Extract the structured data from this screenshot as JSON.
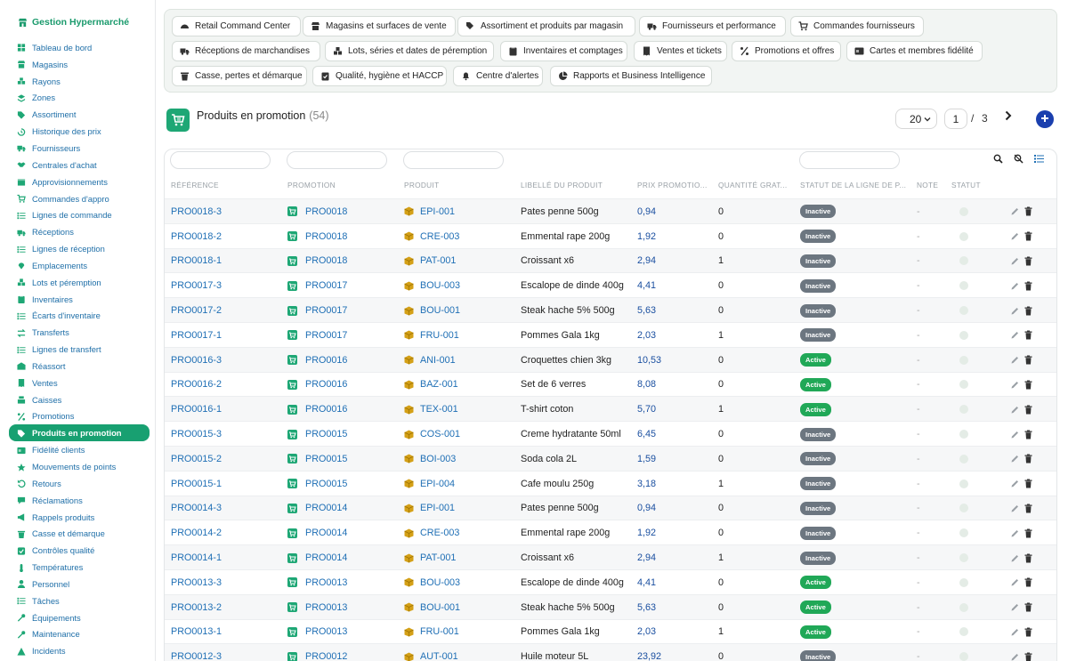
{
  "app": {
    "title": "Gestion Hypermarché"
  },
  "sidebar": {
    "items": [
      {
        "label": "Tableau de bord",
        "icon": "dashboard-icon"
      },
      {
        "label": "Magasins",
        "icon": "store-icon"
      },
      {
        "label": "Rayons",
        "icon": "boxes-icon"
      },
      {
        "label": "Zones",
        "icon": "layers-icon"
      },
      {
        "label": "Assortiment",
        "icon": "tag-icon"
      },
      {
        "label": "Historique des prix",
        "icon": "history-icon"
      },
      {
        "label": "Fournisseurs",
        "icon": "truck-icon"
      },
      {
        "label": "Centrales d'achat",
        "icon": "handshake-icon"
      },
      {
        "label": "Approvisionnements",
        "icon": "box-icon"
      },
      {
        "label": "Commandes d'appro",
        "icon": "cart-icon"
      },
      {
        "label": "Lignes de commande",
        "icon": "list-icon"
      },
      {
        "label": "Réceptions",
        "icon": "truck-loading-icon"
      },
      {
        "label": "Lignes de réception",
        "icon": "list-icon"
      },
      {
        "label": "Emplacements",
        "icon": "location-pin-icon"
      },
      {
        "label": "Lots et péremption",
        "icon": "cubes-icon"
      },
      {
        "label": "Inventaires",
        "icon": "clipboard-icon"
      },
      {
        "label": "Écarts d'inventaire",
        "icon": "list-icon"
      },
      {
        "label": "Transferts",
        "icon": "exchange-icon"
      },
      {
        "label": "Lignes de transfert",
        "icon": "list-icon"
      },
      {
        "label": "Réassort",
        "icon": "warehouse-icon"
      },
      {
        "label": "Ventes",
        "icon": "receipt-icon"
      },
      {
        "label": "Caisses",
        "icon": "cash-register-icon"
      },
      {
        "label": "Promotions",
        "icon": "percent-icon"
      },
      {
        "label": "Produits en promotion",
        "icon": "tag-icon",
        "active": true
      },
      {
        "label": "Fidélité clients",
        "icon": "id-card-icon"
      },
      {
        "label": "Mouvements de points",
        "icon": "star-icon"
      },
      {
        "label": "Retours",
        "icon": "undo-icon"
      },
      {
        "label": "Réclamations",
        "icon": "comment-icon"
      },
      {
        "label": "Rappels produits",
        "icon": "bullhorn-icon"
      },
      {
        "label": "Casse et démarque",
        "icon": "trash-icon"
      },
      {
        "label": "Contrôles qualité",
        "icon": "check-icon"
      },
      {
        "label": "Températures",
        "icon": "thermometer-icon"
      },
      {
        "label": "Personnel",
        "icon": "user-icon"
      },
      {
        "label": "Tâches",
        "icon": "tasks-icon"
      },
      {
        "label": "Équipements",
        "icon": "tools-icon"
      },
      {
        "label": "Maintenance",
        "icon": "wrench-icon"
      },
      {
        "label": "Incidents",
        "icon": "warning-icon"
      }
    ]
  },
  "modules": [
    {
      "label": "Retail Command Center",
      "icon": "gauge-icon"
    },
    {
      "label": "Magasins et surfaces de vente",
      "icon": "store-icon"
    },
    {
      "label": "Assortiment et produits par magasin",
      "icon": "tags-icon"
    },
    {
      "label": "Fournisseurs et performance",
      "icon": "truck-icon"
    },
    {
      "label": "Commandes fournisseurs",
      "icon": "cart-icon"
    },
    {
      "label": "Réceptions de marchandises",
      "icon": "truck-loading-icon"
    },
    {
      "label": "Lots, séries et dates de péremption",
      "icon": "cubes-icon"
    },
    {
      "label": "Inventaires et comptages",
      "icon": "clipboard-icon"
    },
    {
      "label": "Ventes et tickets",
      "icon": "receipt-icon"
    },
    {
      "label": "Promotions et offres",
      "icon": "percent-icon"
    },
    {
      "label": "Cartes et membres fidélité",
      "icon": "id-card-icon"
    },
    {
      "label": "Casse, pertes et démarque",
      "icon": "trash-icon"
    },
    {
      "label": "Qualité, hygiène et HACCP",
      "icon": "clipboard-check-icon"
    },
    {
      "label": "Centre d'alertes",
      "icon": "bell-icon"
    },
    {
      "label": "Rapports et Business Intelligence",
      "icon": "chart-pie-icon"
    }
  ],
  "page": {
    "title": "Produits en promotion",
    "count": "(54)"
  },
  "pagination": {
    "page_size": "20",
    "current_page": "1",
    "separator": "/",
    "total_pages": "3"
  },
  "table": {
    "headers": {
      "reference": "Référence",
      "promotion": "Promotion",
      "produit": "Produit",
      "libelle": "Libellé du produit",
      "prix": "Prix promotio...",
      "quantite": "Quantité grat...",
      "statut_ligne": "Statut de la ligne de p...",
      "note": "Note",
      "statut": "Statut"
    },
    "rows": [
      {
        "ref": "PRO0018-3",
        "promo": "PRO0018",
        "prod": "EPI-001",
        "label": "Pates penne 500g",
        "price": "0,94",
        "qty": "0",
        "status": "Inactive",
        "note": "-"
      },
      {
        "ref": "PRO0018-2",
        "promo": "PRO0018",
        "prod": "CRE-003",
        "label": "Emmental rape 200g",
        "price": "1,92",
        "qty": "0",
        "status": "Inactive",
        "note": "-"
      },
      {
        "ref": "PRO0018-1",
        "promo": "PRO0018",
        "prod": "PAT-001",
        "label": "Croissant x6",
        "price": "2,94",
        "qty": "1",
        "status": "Inactive",
        "note": "-"
      },
      {
        "ref": "PRO0017-3",
        "promo": "PRO0017",
        "prod": "BOU-003",
        "label": "Escalope de dinde 400g",
        "price": "4,41",
        "qty": "0",
        "status": "Inactive",
        "note": "-"
      },
      {
        "ref": "PRO0017-2",
        "promo": "PRO0017",
        "prod": "BOU-001",
        "label": "Steak hache 5% 500g",
        "price": "5,63",
        "qty": "0",
        "status": "Inactive",
        "note": "-"
      },
      {
        "ref": "PRO0017-1",
        "promo": "PRO0017",
        "prod": "FRU-001",
        "label": "Pommes Gala 1kg",
        "price": "2,03",
        "qty": "1",
        "status": "Inactive",
        "note": "-"
      },
      {
        "ref": "PRO0016-3",
        "promo": "PRO0016",
        "prod": "ANI-001",
        "label": "Croquettes chien 3kg",
        "price": "10,53",
        "qty": "0",
        "status": "Active",
        "note": "-"
      },
      {
        "ref": "PRO0016-2",
        "promo": "PRO0016",
        "prod": "BAZ-001",
        "label": "Set de 6 verres",
        "price": "8,08",
        "qty": "0",
        "status": "Active",
        "note": "-"
      },
      {
        "ref": "PRO0016-1",
        "promo": "PRO0016",
        "prod": "TEX-001",
        "label": "T-shirt coton",
        "price": "5,70",
        "qty": "1",
        "status": "Active",
        "note": "-"
      },
      {
        "ref": "PRO0015-3",
        "promo": "PRO0015",
        "prod": "COS-001",
        "label": "Creme hydratante 50ml",
        "price": "6,45",
        "qty": "0",
        "status": "Inactive",
        "note": "-"
      },
      {
        "ref": "PRO0015-2",
        "promo": "PRO0015",
        "prod": "BOI-003",
        "label": "Soda cola 2L",
        "price": "1,59",
        "qty": "0",
        "status": "Inactive",
        "note": "-"
      },
      {
        "ref": "PRO0015-1",
        "promo": "PRO0015",
        "prod": "EPI-004",
        "label": "Cafe moulu 250g",
        "price": "3,18",
        "qty": "1",
        "status": "Inactive",
        "note": "-"
      },
      {
        "ref": "PRO0014-3",
        "promo": "PRO0014",
        "prod": "EPI-001",
        "label": "Pates penne 500g",
        "price": "0,94",
        "qty": "0",
        "status": "Inactive",
        "note": "-"
      },
      {
        "ref": "PRO0014-2",
        "promo": "PRO0014",
        "prod": "CRE-003",
        "label": "Emmental rape 200g",
        "price": "1,92",
        "qty": "0",
        "status": "Inactive",
        "note": "-"
      },
      {
        "ref": "PRO0014-1",
        "promo": "PRO0014",
        "prod": "PAT-001",
        "label": "Croissant x6",
        "price": "2,94",
        "qty": "1",
        "status": "Inactive",
        "note": "-"
      },
      {
        "ref": "PRO0013-3",
        "promo": "PRO0013",
        "prod": "BOU-003",
        "label": "Escalope de dinde 400g",
        "price": "4,41",
        "qty": "0",
        "status": "Active",
        "note": "-"
      },
      {
        "ref": "PRO0013-2",
        "promo": "PRO0013",
        "prod": "BOU-001",
        "label": "Steak hache 5% 500g",
        "price": "5,63",
        "qty": "0",
        "status": "Active",
        "note": "-"
      },
      {
        "ref": "PRO0013-1",
        "promo": "PRO0013",
        "prod": "FRU-001",
        "label": "Pommes Gala 1kg",
        "price": "2,03",
        "qty": "1",
        "status": "Active",
        "note": "-"
      },
      {
        "ref": "PRO0012-3",
        "promo": "PRO0012",
        "prod": "AUT-001",
        "label": "Huile moteur 5L",
        "price": "23,92",
        "qty": "0",
        "status": "Inactive",
        "note": "-"
      }
    ]
  },
  "colors": {
    "accent": "#18a071",
    "link": "#1f6fb5",
    "active_badge": "#20a857",
    "inactive_badge": "#6c7680",
    "add_button": "#1a3fae"
  }
}
